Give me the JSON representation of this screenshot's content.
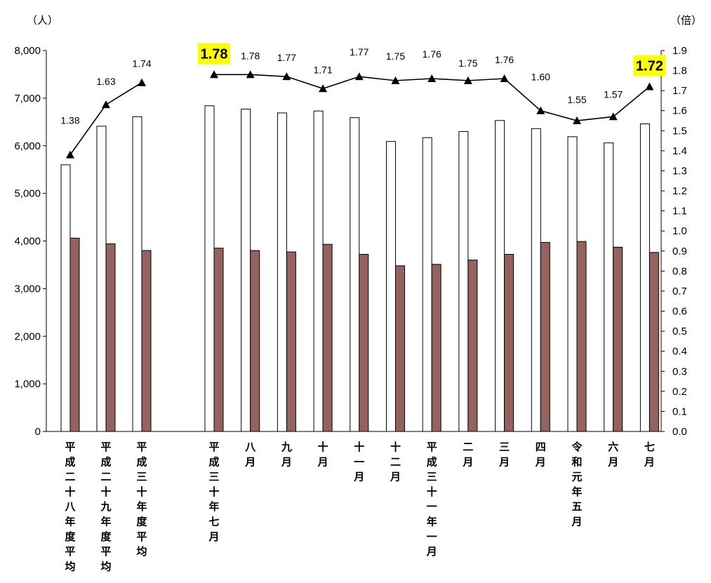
{
  "chart_data": {
    "type": "bar",
    "left_unit": "（人）",
    "right_unit": "（倍）",
    "categories": [
      "平成二十八年度平均",
      "平成二十九年度平均",
      "平成三十年度平均",
      "平成三十年七月",
      "八月",
      "九月",
      "十月",
      "十一月",
      "十二月",
      "平成三十一年一月",
      "二月",
      "三月",
      "四月",
      "令和元年五月",
      "六月",
      "七月"
    ],
    "group_break_after": 2,
    "y_left": {
      "min": 0,
      "max": 8000,
      "step": 1000,
      "ticks": [
        "0",
        "1,000",
        "2,000",
        "3,000",
        "4,000",
        "5,000",
        "6,000",
        "7,000",
        "8,000"
      ]
    },
    "y_right": {
      "min": 0,
      "max": 1.9,
      "step": 0.1,
      "ticks": [
        "0.0",
        "0.1",
        "0.2",
        "0.3",
        "0.4",
        "0.5",
        "0.6",
        "0.7",
        "0.8",
        "0.9",
        "1.0",
        "1.1",
        "1.2",
        "1.3",
        "1.4",
        "1.5",
        "1.6",
        "1.7",
        "1.8",
        "1.9"
      ]
    },
    "series": [
      {
        "type": "bar",
        "axis": "left",
        "color": "#ffffff",
        "stroke": "#000000",
        "values": [
          5600,
          6410,
          6610,
          6840,
          6770,
          6690,
          6730,
          6590,
          6090,
          6170,
          6300,
          6530,
          6360,
          6190,
          6060,
          6460
        ]
      },
      {
        "type": "bar",
        "axis": "left",
        "color": "#946360",
        "stroke": "#000000",
        "values": [
          4060,
          3940,
          3800,
          3850,
          3800,
          3770,
          3930,
          3720,
          3480,
          3510,
          3600,
          3720,
          3970,
          3990,
          3870,
          3760
        ]
      },
      {
        "type": "line",
        "axis": "right",
        "color": "#000000",
        "marker": "triangle",
        "segments": [
          [
            0,
            2
          ],
          [
            3,
            15
          ]
        ],
        "values": [
          1.38,
          1.63,
          1.74,
          1.78,
          1.78,
          1.77,
          1.71,
          1.77,
          1.75,
          1.76,
          1.75,
          1.76,
          1.6,
          1.55,
          1.57,
          1.72
        ],
        "labels": [
          "1.38",
          "1.63",
          "1.74",
          "1.78",
          "1.78",
          "1.77",
          "1.71",
          "1.77",
          "1.75",
          "1.76",
          "1.75",
          "1.76",
          "1.60",
          "1.55",
          "1.57",
          "1.72"
        ],
        "highlighted": [
          3,
          15
        ],
        "highlight_color": "#ffff00"
      }
    ],
    "grid": false,
    "legend": "none"
  }
}
